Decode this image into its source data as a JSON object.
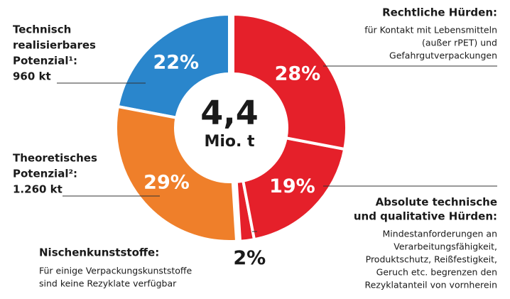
{
  "chart_data": {
    "type": "donut",
    "center_label": [
      "4,4",
      "Mio. t"
    ],
    "values": [
      28,
      19,
      2,
      29,
      22
    ],
    "value_labels": [
      "28%",
      "19%",
      "2%",
      "29%",
      "22%"
    ],
    "colors": [
      "#e5202a",
      "#e5202a",
      "#e5202a",
      "#ef7f2a",
      "#2a86cc"
    ],
    "labels": [
      {
        "title": [
          "Rechtliche Hürden:"
        ],
        "text": [
          "für Kontakt mit Lebensmitteln",
          "(außer rPET) und",
          "Gefahrgutverpackungen"
        ]
      },
      {
        "title": [
          "Absolute technische",
          "und qualitative Hürden:"
        ],
        "text": [
          "Mindestanforderungen an",
          "Verarbeitungsfähigkeit,",
          "Produktschutz, Reißfestigkeit,",
          "Geruch etc. begrenzen den",
          "Rezyklatanteil von vornherein"
        ]
      },
      {
        "title": [
          "Nischenkunststoffe:"
        ],
        "text": [
          "Für einige Verpackungskunststoffe",
          "sind keine Rezyklate verfügbar"
        ]
      },
      {
        "title": [
          "Theoretisches",
          "Potenzial²:",
          "1.260 kt"
        ],
        "text": []
      },
      {
        "title": [
          "Technisch",
          "realisierbares",
          "Potenzial¹:",
          "960 kt"
        ],
        "text": []
      }
    ]
  }
}
